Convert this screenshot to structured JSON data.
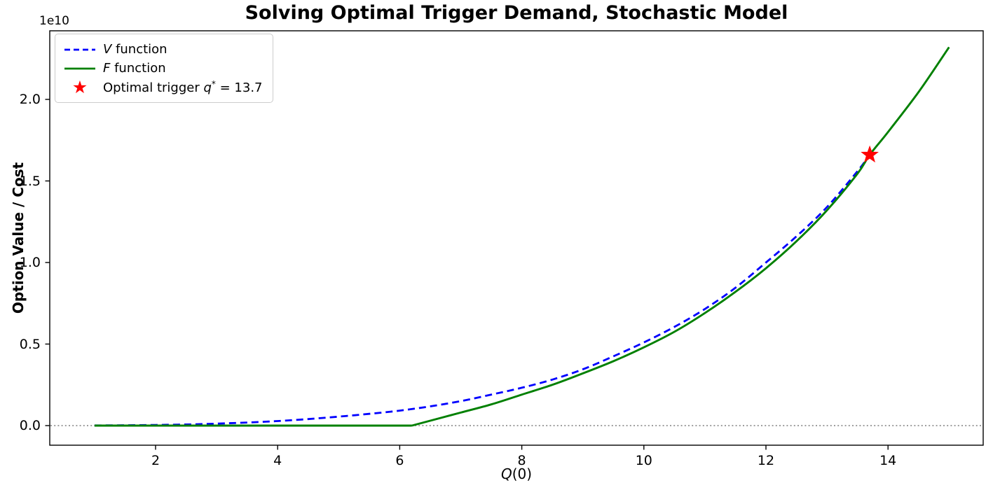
{
  "title": "Solving Optimal Trigger Demand, Stochastic Model",
  "axes": {
    "xlabel_math": "Q",
    "xlabel_rest": "(0)",
    "ylabel": "Option Value / Cost",
    "offset_text": "1e10"
  },
  "legend": {
    "v": {
      "math": "V",
      "rest": " function"
    },
    "f": {
      "math": "F",
      "rest": " function"
    },
    "trigger": {
      "prefix": "Optimal trigger ",
      "math": "q",
      "sup": "*",
      "suffix": " = 13.7"
    },
    "star_glyph": "★"
  },
  "colors": {
    "v_line": "#0000ff",
    "f_line": "#008000",
    "star": "#ff0000",
    "zero_line": "#7f7f7f",
    "spine": "#000000"
  },
  "chart_data": {
    "type": "line",
    "title": "Solving Optimal Trigger Demand, Stochastic Model",
    "xlabel": "Q(0)",
    "ylabel": "Option Value / Cost",
    "y_scale_factor": "1e10",
    "xlim": [
      0.3,
      15.7
    ],
    "ylim": [
      -0.12,
      2.43
    ],
    "x_ticks": [
      2,
      4,
      6,
      8,
      10,
      12,
      14
    ],
    "y_ticks": [
      0.0,
      0.5,
      1.0,
      1.5,
      2.0
    ],
    "grid": false,
    "legend_position": "upper left",
    "series": [
      {
        "name": "V function",
        "color": "#0000ff",
        "style": "dashed",
        "x": [
          1,
          1.5,
          2,
          2.5,
          3,
          3.5,
          4,
          4.5,
          5,
          5.5,
          6,
          6.5,
          7,
          7.5,
          8,
          8.5,
          9,
          9.5,
          10,
          10.5,
          11,
          11.5,
          12,
          12.5,
          13,
          13.5,
          13.7
        ],
        "y": [
          0.001,
          0.002,
          0.004,
          0.007,
          0.012,
          0.019,
          0.028,
          0.04,
          0.055,
          0.072,
          0.092,
          0.118,
          0.15,
          0.19,
          0.232,
          0.282,
          0.345,
          0.425,
          0.51,
          0.605,
          0.715,
          0.845,
          1.0,
          1.16,
          1.34,
          1.56,
          1.66
        ]
      },
      {
        "name": "F function",
        "color": "#008000",
        "style": "solid",
        "x": [
          1,
          6.2,
          6.5,
          7,
          7.5,
          8,
          8.5,
          9,
          9.5,
          10,
          10.5,
          11,
          11.5,
          12,
          12.5,
          13,
          13.5,
          13.7,
          14,
          14.5,
          15
        ],
        "y": [
          0,
          0,
          0.03,
          0.08,
          0.13,
          0.19,
          0.25,
          0.32,
          0.395,
          0.48,
          0.575,
          0.69,
          0.82,
          0.965,
          1.13,
          1.32,
          1.545,
          1.66,
          1.8,
          2.045,
          2.32
        ]
      }
    ],
    "marker": {
      "label": "Optimal trigger q* = 13.7",
      "x": 13.7,
      "y": 1.66,
      "color": "#ff0000",
      "shape": "star"
    },
    "zero_line": {
      "y": 0,
      "style": "dotted",
      "color": "#7f7f7f"
    }
  }
}
